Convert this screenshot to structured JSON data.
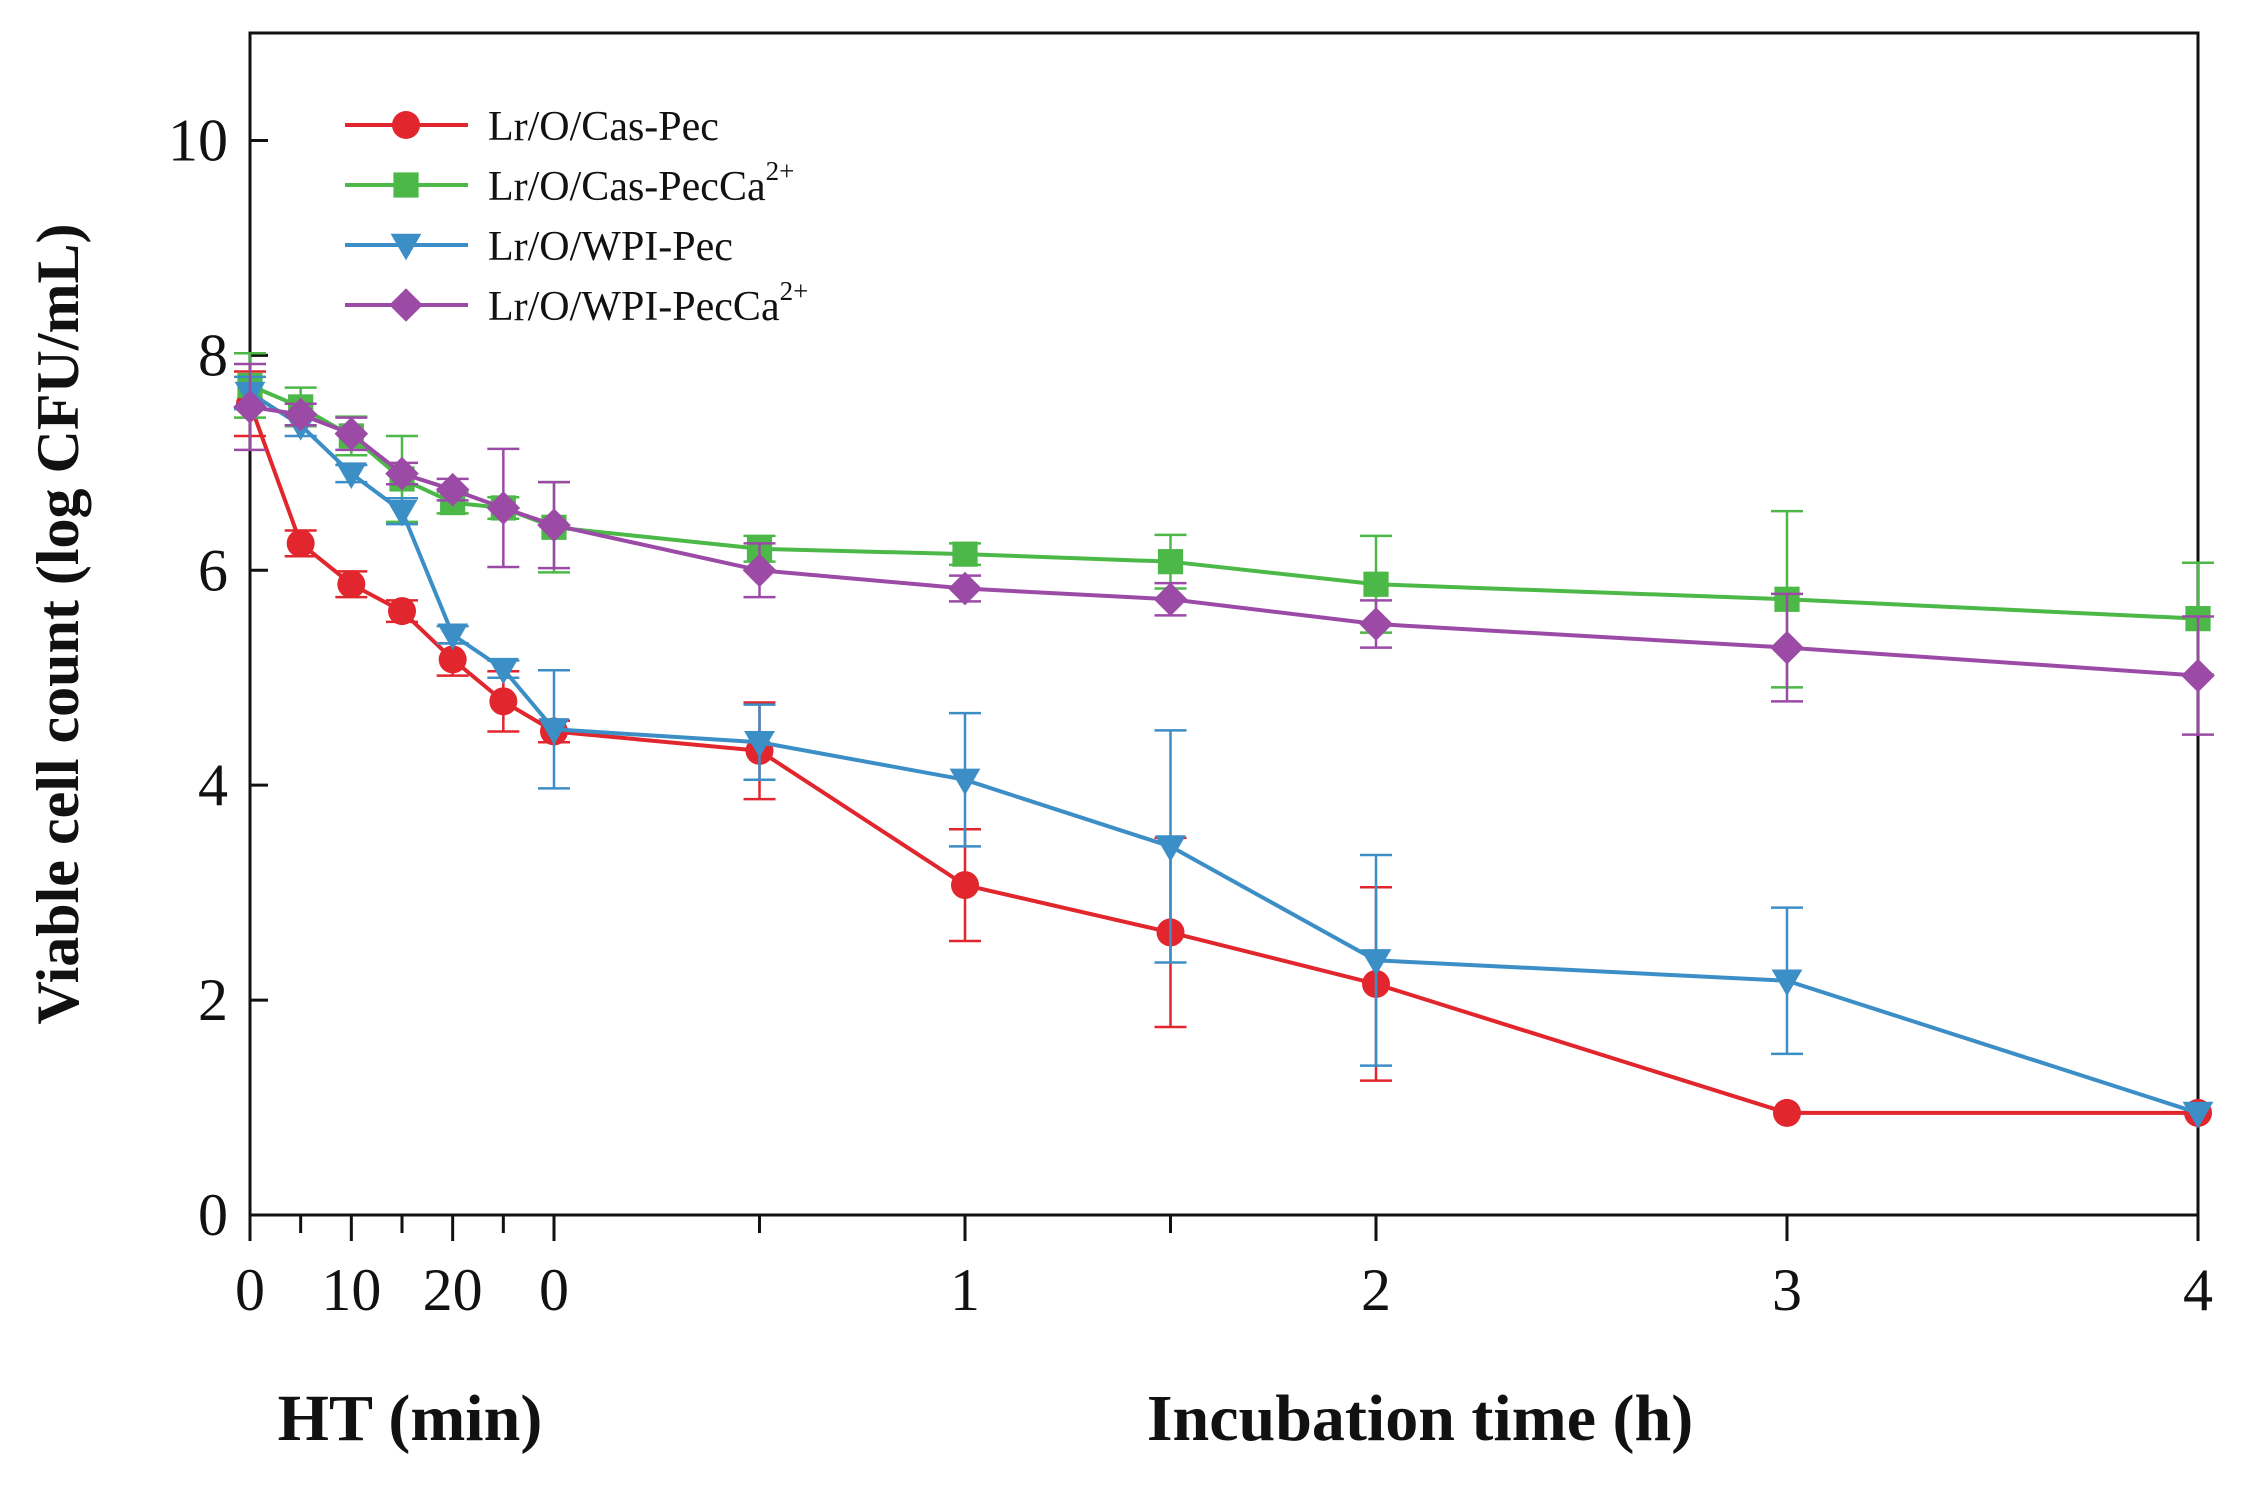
{
  "chart_data": {
    "type": "line",
    "title": "",
    "ylabel": "Viable cell count (log CFU/mL)",
    "ylim": [
      0,
      11
    ],
    "yticks": [
      "0",
      "2",
      "4",
      "6",
      "8",
      "10"
    ],
    "x_panels": [
      {
        "name": "HT",
        "xlabel": "HT (min)",
        "range": [
          0,
          30
        ],
        "ticks": [
          "0",
          "10",
          "20"
        ],
        "minor_ticks": [
          5,
          15,
          25
        ]
      },
      {
        "name": "Incubation",
        "xlabel": "Incubation time (h)",
        "range": [
          0,
          4
        ],
        "ticks": [
          "0",
          "1",
          "2",
          "3",
          "4"
        ],
        "minor_ticks": [
          0.5,
          1.5
        ]
      }
    ],
    "series": [
      {
        "name": "Lr/O/Cas-Pec",
        "base": "Lr/O/Cas-Pec",
        "sup": "",
        "color": "#e1262d",
        "marker": "circle",
        "ht": {
          "x": [
            0,
            5,
            10,
            15,
            20,
            25
          ],
          "y": [
            7.55,
            6.25,
            5.87,
            5.62,
            5.17,
            4.78
          ],
          "err": [
            0.3,
            0.12,
            0.12,
            0.1,
            0.15,
            0.28
          ]
        },
        "inc": {
          "x": [
            0,
            0.5,
            1,
            1.5,
            2,
            3,
            4
          ],
          "y": [
            4.5,
            4.32,
            3.07,
            2.63,
            2.15,
            0.95,
            0.95
          ],
          "err": [
            0.1,
            0.45,
            0.52,
            0.88,
            0.9,
            0,
            0
          ]
        }
      },
      {
        "name": "Lr/O/Cas-PecCa2+",
        "base": "Lr/O/Cas-PecCa",
        "sup": "2+",
        "color": "#4cb848",
        "marker": "square",
        "ht": {
          "x": [
            0,
            5,
            10,
            15,
            20,
            25
          ],
          "y": [
            7.72,
            7.52,
            7.25,
            6.85,
            6.63,
            6.58
          ],
          "err": [
            0.3,
            0.18,
            0.18,
            0.4,
            0.1,
            0.1
          ]
        },
        "inc": {
          "x": [
            0,
            0.5,
            1,
            1.5,
            2,
            3,
            4
          ],
          "y": [
            6.4,
            6.2,
            6.15,
            6.08,
            5.87,
            5.73,
            5.55
          ],
          "err": [
            0.42,
            0.12,
            0.1,
            0.25,
            0.45,
            0.82,
            0.52
          ]
        }
      },
      {
        "name": "Lr/O/WPI-Pec",
        "base": "Lr/O/WPI-Pec",
        "sup": "",
        "color": "#3c8ec6",
        "marker": "triangle-down",
        "ht": {
          "x": [
            0,
            5,
            10,
            15,
            20,
            25
          ],
          "y": [
            7.65,
            7.35,
            6.9,
            6.55,
            5.4,
            5.08
          ],
          "err": [
            0.15,
            0.1,
            0.08,
            0.12,
            0.08,
            0.08
          ]
        },
        "inc": {
          "x": [
            0,
            0.5,
            1,
            1.5,
            2,
            3,
            4
          ],
          "y": [
            4.52,
            4.4,
            4.05,
            3.43,
            2.37,
            2.18,
            0.95
          ],
          "err": [
            0.55,
            0.35,
            0.62,
            1.08,
            0.98,
            0.68,
            0
          ]
        }
      },
      {
        "name": "Lr/O/WPI-PecCa2+",
        "base": "Lr/O/WPI-PecCa",
        "sup": "2+",
        "color": "#9b4ba6",
        "marker": "diamond",
        "ht": {
          "x": [
            0,
            5,
            10,
            15,
            20,
            25
          ],
          "y": [
            7.52,
            7.45,
            7.27,
            6.9,
            6.75,
            6.58
          ],
          "err": [
            0.4,
            0.1,
            0.15,
            0.1,
            0.1,
            0.55
          ]
        },
        "inc": {
          "x": [
            0,
            0.5,
            1,
            1.5,
            2,
            3,
            4
          ],
          "y": [
            6.42,
            6.0,
            5.83,
            5.73,
            5.5,
            5.28,
            5.02
          ],
          "err": [
            0.4,
            0.25,
            0.12,
            0.15,
            0.22,
            0.5,
            0.55
          ]
        }
      }
    ],
    "legend_position": "top-left"
  }
}
